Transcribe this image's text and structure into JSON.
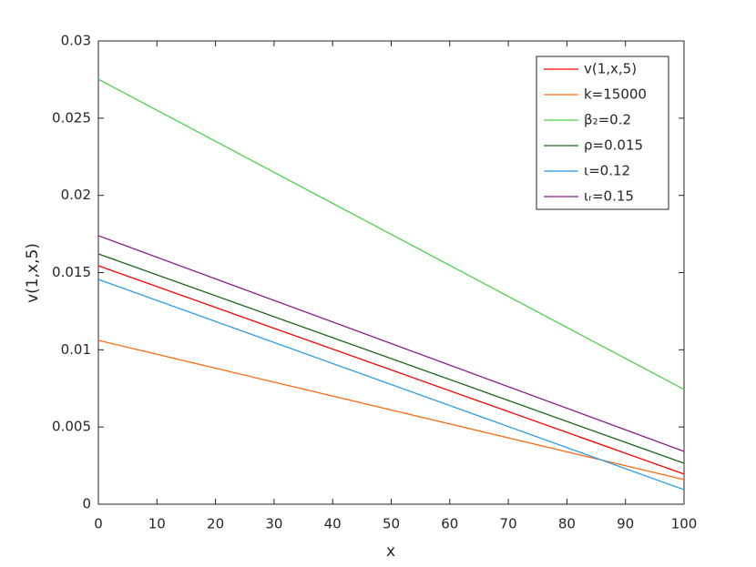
{
  "chart_data": {
    "type": "line",
    "xlabel": "x",
    "ylabel": "v(1,x,5)",
    "x": [
      0,
      100
    ],
    "series": [
      {
        "name": "v(1,x,5)",
        "color": "#ff0000",
        "values": [
          0.01544,
          0.00195
        ]
      },
      {
        "name": "k=15000",
        "color": "#ff6a14",
        "values": [
          0.01061,
          0.00159
        ]
      },
      {
        "name": "β₂=0.2",
        "color": "#4dd24d",
        "values": [
          0.02752,
          0.00743
        ]
      },
      {
        "name": "ρ=0.015",
        "color": "#1a661a",
        "values": [
          0.01621,
          0.00265
        ]
      },
      {
        "name": "ι=0.12",
        "color": "#2b9be6",
        "values": [
          0.01456,
          0.00094
        ]
      },
      {
        "name": "ιᵣ=0.15",
        "color": "#8b1a8b",
        "values": [
          0.01739,
          0.00342
        ]
      }
    ],
    "xlim": [
      0,
      100
    ],
    "xticks": [
      0,
      10,
      20,
      30,
      40,
      50,
      60,
      70,
      80,
      90,
      100
    ],
    "ylim": [
      0,
      0.03
    ],
    "yticks": [
      0,
      0.005,
      0.01,
      0.015,
      0.02,
      0.025,
      0.03
    ],
    "grid": false,
    "legend": "northeast"
  }
}
